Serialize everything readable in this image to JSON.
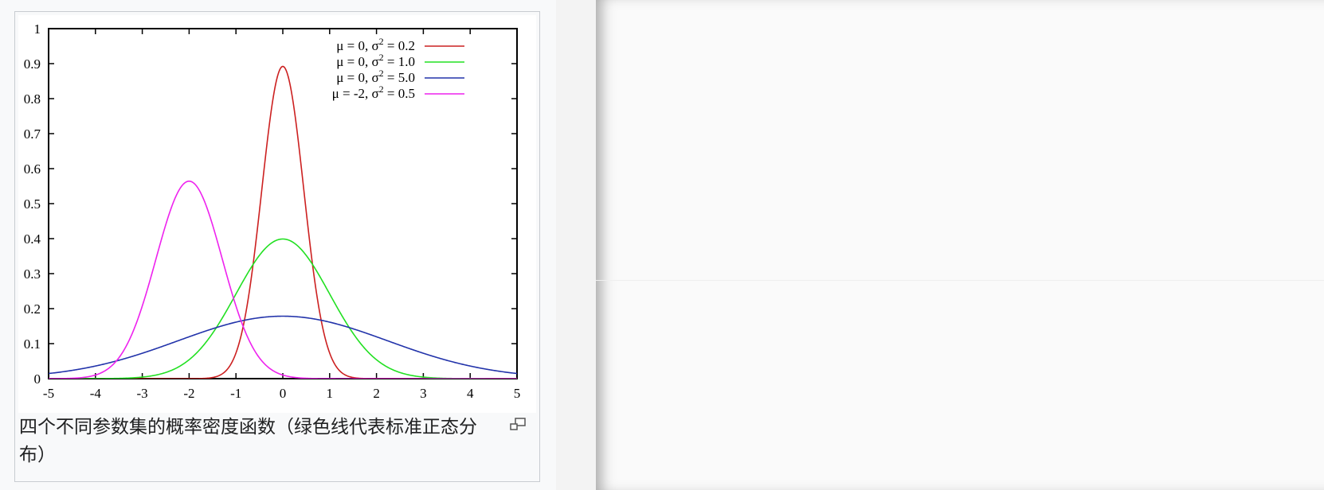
{
  "caption": "四个不同参数集的概率密度函数（绿色线代表标准正态分布）",
  "magnify_icon": "magnify-clip-icon",
  "chart_data": {
    "type": "line",
    "title": "",
    "xlabel": "",
    "ylabel": "",
    "xlim": [
      -5,
      5
    ],
    "ylim": [
      0,
      1
    ],
    "x_ticks": [
      "-5",
      "-4",
      "-3",
      "-2",
      "-1",
      "0",
      "1",
      "2",
      "3",
      "4",
      "5"
    ],
    "y_ticks": [
      "0",
      "0.1",
      "0.2",
      "0.3",
      "0.4",
      "0.5",
      "0.6",
      "0.7",
      "0.8",
      "0.9",
      "1"
    ],
    "grid": false,
    "legend_position": "top-right",
    "series": [
      {
        "name": "μ =  0, σ2 = 0.2",
        "mu": 0,
        "sigma2": 0.2,
        "color": "#cc2020",
        "peak": 0.892
      },
      {
        "name": "μ =  0, σ2 = 1.0",
        "mu": 0,
        "sigma2": 1.0,
        "color": "#22e022",
        "peak": 0.399
      },
      {
        "name": "μ =  0, σ2 = 5.0",
        "mu": 0,
        "sigma2": 5.0,
        "color": "#2233aa",
        "peak": 0.178
      },
      {
        "name": "μ = -2, σ2 = 0.5",
        "mu": -2,
        "sigma2": 0.5,
        "color": "#ee22ee",
        "peak": 0.564
      }
    ],
    "legend": [
      {
        "mu": "0",
        "sigma2": "0.2",
        "pre": "μ =  0, σ",
        "post": " = 0.2"
      },
      {
        "mu": "0",
        "sigma2": "1.0",
        "pre": "μ =  0, σ",
        "post": " = 1.0"
      },
      {
        "mu": "0",
        "sigma2": "5.0",
        "pre": "μ =  0, σ",
        "post": " = 5.0"
      },
      {
        "mu": "-2",
        "sigma2": "0.5",
        "pre": "μ = -2, σ",
        "post": " = 0.5"
      }
    ]
  }
}
